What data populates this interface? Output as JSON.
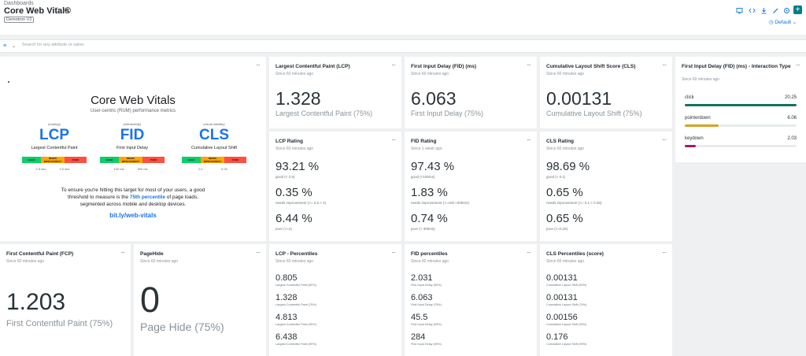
{
  "header": {
    "breadcrumb": "Dashboards",
    "title": "Core Web Vitals",
    "star_icon": "☆",
    "info_icon": "i",
    "tag": "Demotron V2",
    "time_picker": "Default",
    "add_icon": "+",
    "toolbar_icons": [
      "tv-mode-icon",
      "code-icon",
      "download-icon",
      "edit-icon",
      "settings-icon"
    ]
  },
  "filter": {
    "placeholder": "Search for any attribute or value."
  },
  "menu_icon": "···",
  "image_widget": {
    "title": "Core Web Vitals",
    "subtitle": "User-centric (RUM) performance metrics",
    "metrics": [
      {
        "tag": "(loading)",
        "abbr": "LCP",
        "name": "Largest Contentful Paint",
        "good": "GOOD",
        "ni": "NEEDS IMPROVEMENT",
        "poor": "POOR",
        "t1": "2.5 sec",
        "t2": "4.0 sec"
      },
      {
        "tag": "(interactivity)",
        "abbr": "FID",
        "name": "First Input Delay",
        "good": "GOOD",
        "ni": "NEEDS IMPROVEMENT",
        "poor": "POOR",
        "t1": "100 ms",
        "t2": "300 ms"
      },
      {
        "tag": "(visual stability)",
        "abbr": "CLS",
        "name": "Cumulative Layout Shift",
        "good": "GOOD",
        "ni": "NEEDS IMPROVEMENT",
        "poor": "POOR",
        "t1": "0.1",
        "t2": "0.25"
      }
    ],
    "desc_line1": "To ensure you're hitting this target for most of your users, a good",
    "desc_line2_a": "threshold to measure is the ",
    "desc_line2_b": "75th percentile",
    "desc_line2_c": " of page loads,",
    "desc_line3": "segmented across mobile and desktop devices.",
    "link": "bit.ly/web-vitals",
    "colors": {
      "good": "#0cce6b",
      "ni": "#ffa400",
      "poor": "#ff4e42",
      "blue": "#1a73e8"
    }
  },
  "billboards": {
    "lcp": {
      "title": "Largest Contentful Paint (LCP)",
      "since": "Since 60 minutes ago",
      "value": "1.328",
      "label": "Largest Contentful Paint (75%)"
    },
    "fid": {
      "title": "First Input Delay (FID) (ms)",
      "since": "Since 60 minutes ago",
      "value": "6.063",
      "label": "First Input Delay (75%)"
    },
    "cls": {
      "title": "Cumulative Layout Shift Score (CLS)",
      "since": "Since 60 minutes ago",
      "value": "0.00131",
      "label": "Cumulative Layout Shift (75%)"
    },
    "fcp": {
      "title": "First Contentful Paint (FCP)",
      "since": "Since 60 minutes ago",
      "value": "1.203",
      "label": "First Contentful Paint (75%)"
    },
    "pagehide": {
      "title": "PageHide",
      "since": "Since 60 minutes ago",
      "value": "0",
      "label": "Page Hide (75%)"
    }
  },
  "ratings": {
    "lcp": {
      "title": "LCP Rating",
      "since": "Since 60 minutes ago",
      "rows": [
        {
          "value": "93.21 %",
          "label": "good (< 2.5)"
        },
        {
          "value": "0.35 %",
          "label": "needs improvement (>= 2.5 < 4)"
        },
        {
          "value": "6.44 %",
          "label": "poor (>=4)"
        }
      ]
    },
    "fid": {
      "title": "FID Rating",
      "since": "Since 1 week ago",
      "rows": [
        {
          "value": "97.43 %",
          "label": "good (<100ms)"
        },
        {
          "value": "1.83 %",
          "label": "needs improvement (>=100 <300ms)"
        },
        {
          "value": "0.74 %",
          "label": "poor (> 300ms)"
        }
      ]
    },
    "cls": {
      "title": "CLS Rating",
      "since": "Since 60 minutes ago",
      "rows": [
        {
          "value": "98.69 %",
          "label": "good (< 0.1)"
        },
        {
          "value": "0.65 %",
          "label": "needs improvement (>= 0.1 < 0.25)"
        },
        {
          "value": "0.65 %",
          "label": "poor (>=0.25)"
        }
      ]
    }
  },
  "percentiles": {
    "lcp": {
      "title": "LCP - Percentiles",
      "since": "Since 60 minutes ago",
      "rows": [
        {
          "value": "0.805",
          "label": "Largest Contentful Paint (50%)"
        },
        {
          "value": "1.328",
          "label": "Largest Contentful Paint (75%)"
        },
        {
          "value": "4.813",
          "label": "Largest Contentful Paint (95%)"
        },
        {
          "value": "6.438",
          "label": "Largest Contentful Paint (99%)"
        }
      ]
    },
    "fid": {
      "title": "FID percentiles",
      "since": "Since 60 minutes ago",
      "rows": [
        {
          "value": "2.031",
          "label": "First Input Delay (50%)"
        },
        {
          "value": "6.063",
          "label": "First Input Delay (75%)"
        },
        {
          "value": "45.5",
          "label": "First Input Delay (95%)"
        },
        {
          "value": "284",
          "label": "First Input Delay (99%)"
        }
      ]
    },
    "cls": {
      "title": "CLS Percentiles (score)",
      "since": "Since 60 minutes ago",
      "rows": [
        {
          "value": "0.00131",
          "label": "Cumulative Layout Shift (50%)"
        },
        {
          "value": "0.00131",
          "label": "Cumulative Layout Shift (75%)"
        },
        {
          "value": "0.00156",
          "label": "Cumulative Layout Shift (95%)"
        },
        {
          "value": "0.176",
          "label": "Cumulative Layout Shift (99%)"
        }
      ]
    }
  },
  "interaction": {
    "title": "First Input Delay (FID) (ms) - Interaction Type",
    "since": "Since 60 minutes ago",
    "items": [
      {
        "name": "click",
        "value": "20.25",
        "fraction": 1.0,
        "color": "#11745f"
      },
      {
        "name": "pointerdown",
        "value": "6.06",
        "fraction": 0.3,
        "color": "#d6a21f"
      },
      {
        "name": "keydown",
        "value": "2.03",
        "fraction": 0.1,
        "color": "#a3196e"
      }
    ]
  }
}
